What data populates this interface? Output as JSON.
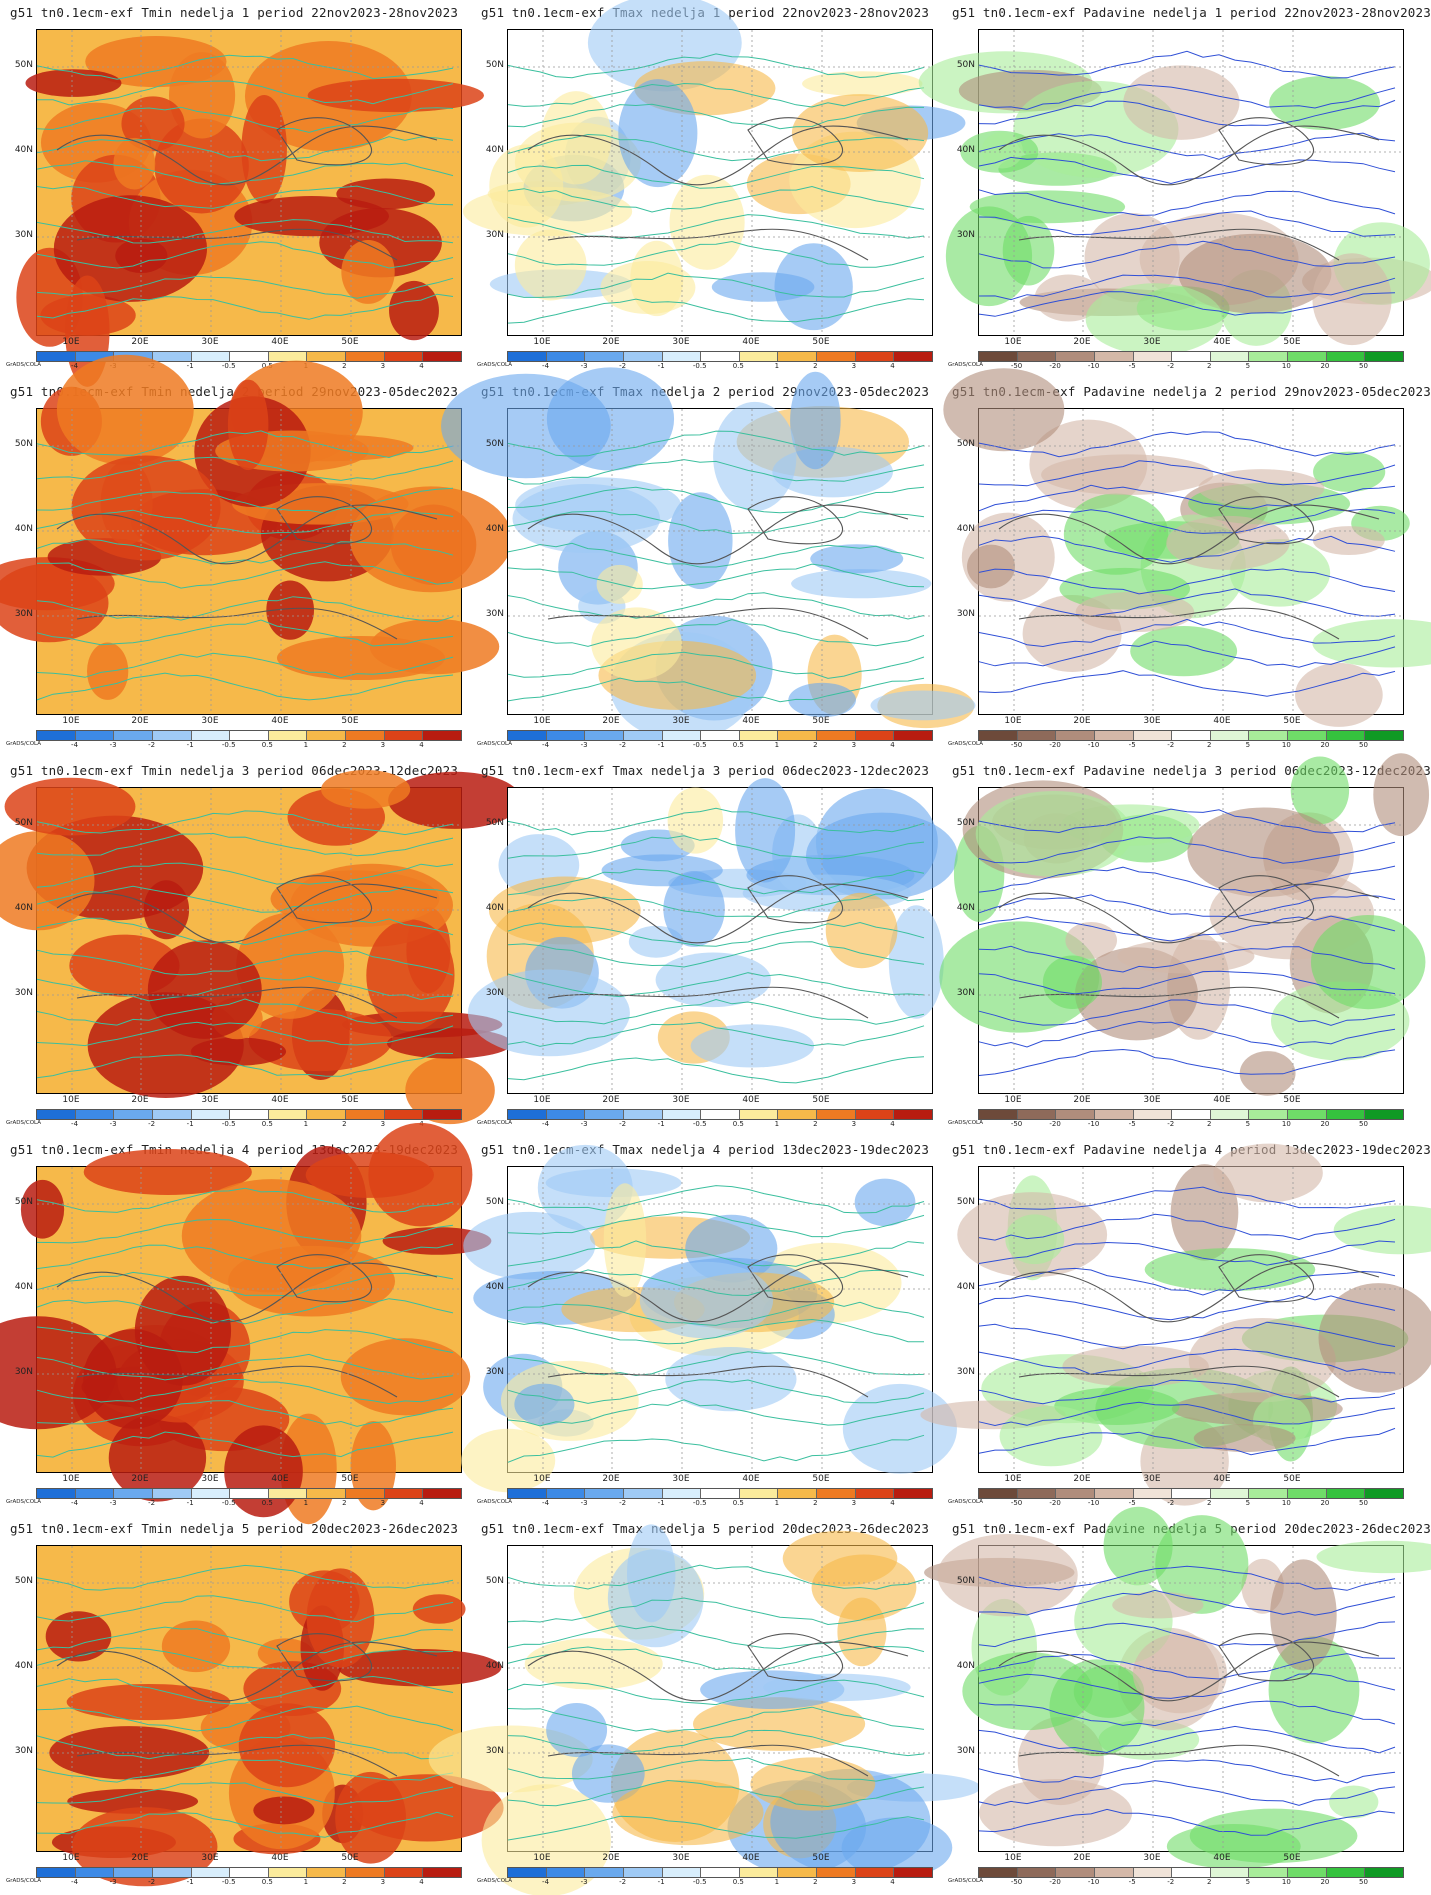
{
  "lat_labels": [
    "50N",
    "40N",
    "30N"
  ],
  "lon_labels": [
    "10E",
    "20E",
    "30E",
    "40E",
    "50E"
  ],
  "credit": "GrADS/COLA",
  "scales": {
    "temp": {
      "labels": [
        "-4",
        "-3",
        "-2",
        "-1",
        "-0.5",
        "0.5",
        "1",
        "2",
        "3",
        "4"
      ],
      "colors": [
        "#1e6fd8",
        "#3d8ae6",
        "#6aa9ee",
        "#9fcaf5",
        "#d8eefc",
        "#ffffff",
        "#fbeb9c",
        "#f6b94a",
        "#ee7a22",
        "#dc4318",
        "#b81c10"
      ]
    },
    "precip": {
      "labels": [
        "-50",
        "-20",
        "-10",
        "-5",
        "-2",
        "2",
        "5",
        "10",
        "20",
        "50"
      ],
      "colors": [
        "#6d4a3a",
        "#8e6a5a",
        "#b08d7c",
        "#d4b8a8",
        "#f0e3d8",
        "#ffffff",
        "#dff6d6",
        "#a8ec9a",
        "#6fdc68",
        "#35c23e",
        "#0f9a24"
      ]
    }
  },
  "map_styles": {
    "tmin": {
      "base": "#f6b94a",
      "accents": [
        "#ee7a22",
        "#dc4318",
        "#b81c10"
      ],
      "contour": "#3bbf9e"
    },
    "tmax": {
      "base": "#ffffff",
      "accents": [
        "#9fcaf5",
        "#6aa9ee",
        "#fbeb9c",
        "#f6b94a"
      ],
      "contour": "#3bbf9e"
    },
    "precip": {
      "base": "#ffffff",
      "accents": [
        "#a8ec9a",
        "#6fdc68",
        "#d4b8a8",
        "#b08d7c"
      ],
      "contour": "#2f4fd6"
    }
  },
  "panels": [
    {
      "title": "g51  tn0.1ecm-exf  Tmin  nedelja  1  period  22nov2023-28nov2023",
      "kind": "tmin",
      "scale": "temp"
    },
    {
      "title": "g51  tn0.1ecm-exf  Tmax  nedelja  1  period  22nov2023-28nov2023",
      "kind": "tmax",
      "scale": "temp"
    },
    {
      "title": "g51  tn0.1ecm-exf  Padavine  nedelja  1  period  22nov2023-28nov2023",
      "kind": "precip",
      "scale": "precip"
    },
    {
      "title": "g51  tn0.1ecm-exf  Tmin  nedelja  2  period  29nov2023-05dec2023",
      "kind": "tmin",
      "scale": "temp"
    },
    {
      "title": "g51  tn0.1ecm-exf  Tmax  nedelja  2  period  29nov2023-05dec2023",
      "kind": "tmax",
      "scale": "temp"
    },
    {
      "title": "g51  tn0.1ecm-exf  Padavine  nedelja  2  period  29nov2023-05dec2023",
      "kind": "precip",
      "scale": "precip"
    },
    {
      "title": "g51  tn0.1ecm-exf  Tmin  nedelja  3  period  06dec2023-12dec2023",
      "kind": "tmin",
      "scale": "temp"
    },
    {
      "title": "g51  tn0.1ecm-exf  Tmax  nedelja  3  period  06dec2023-12dec2023",
      "kind": "tmax",
      "scale": "temp"
    },
    {
      "title": "g51  tn0.1ecm-exf  Padavine  nedelja  3  period  06dec2023-12dec2023",
      "kind": "precip",
      "scale": "precip"
    },
    {
      "title": "g51  tn0.1ecm-exf  Tmin  nedelja  4  period  13dec2023-19dec2023",
      "kind": "tmin",
      "scale": "temp"
    },
    {
      "title": "g51  tn0.1ecm-exf  Tmax  nedelja  4  period  13dec2023-19dec2023",
      "kind": "tmax",
      "scale": "temp"
    },
    {
      "title": "g51  tn0.1ecm-exf  Padavine  nedelja  4  period  13dec2023-19dec2023",
      "kind": "precip",
      "scale": "precip"
    },
    {
      "title": "g51  tn0.1ecm-exf  Tmin  nedelja  5  period  20dec2023-26dec2023",
      "kind": "tmin",
      "scale": "temp"
    },
    {
      "title": "g51  tn0.1ecm-exf  Tmax  nedelja  5  period  20dec2023-26dec2023",
      "kind": "tmax",
      "scale": "temp"
    },
    {
      "title": "g51  tn0.1ecm-exf  Padavine  nedelja  5  period  20dec2023-26dec2023",
      "kind": "precip",
      "scale": "precip"
    }
  ]
}
